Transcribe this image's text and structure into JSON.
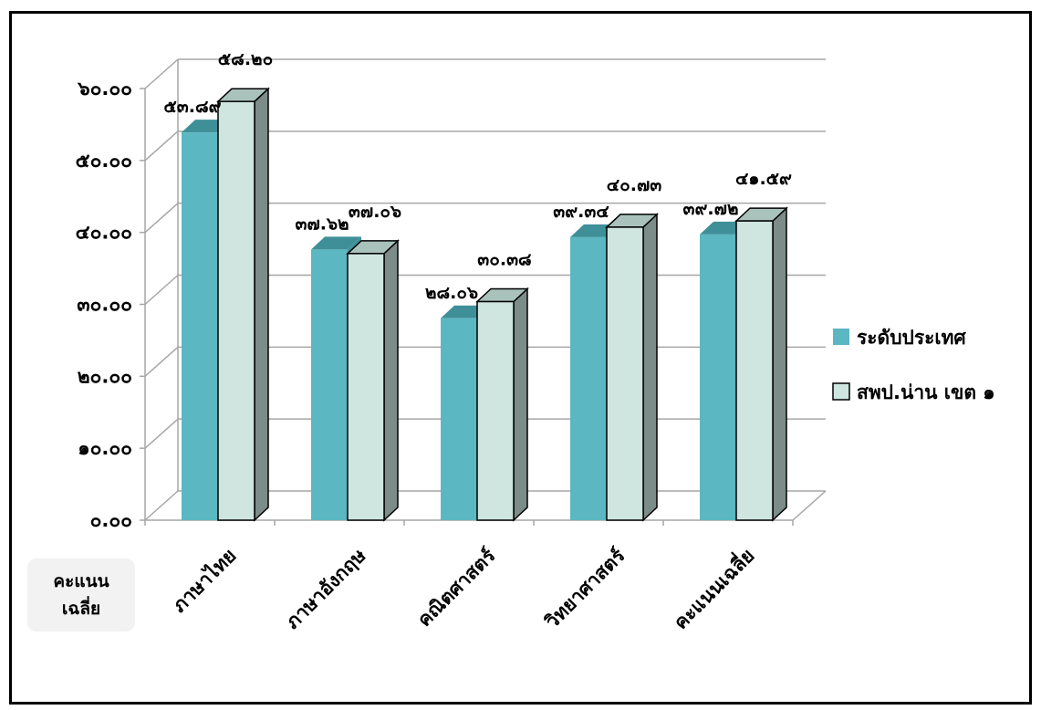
{
  "chart_data": {
    "type": "bar",
    "title": "",
    "xlabel": "",
    "ylabel": [
      "คะแนน",
      "เฉลี่ย"
    ],
    "categories": [
      "ภาษาไทย",
      "ภาษาอังกฤษ",
      "คณิตศาสตร์",
      "วิทยาศาสตร์",
      "คะแนนเฉลี่ย"
    ],
    "series": [
      {
        "name": "ระดับประเทศ",
        "color": "#5bb7c2",
        "values": [
          53.89,
          37.62,
          28.06,
          39.34,
          39.72
        ],
        "labels": [
          "๕๓.๘๙",
          "๓๗.๖๒",
          "๒๘.๐๖",
          "๓๙.๓๔",
          "๓๙.๗๒"
        ]
      },
      {
        "name": "สพป.น่าน เขต ๑",
        "color": "#cfe6e0",
        "values": [
          58.2,
          37.06,
          30.38,
          40.73,
          41.59
        ],
        "labels": [
          "๕๘.๒๐",
          "๓๗.๐๖",
          "๓๐.๓๘",
          "๔๐.๗๓",
          "๔๑.๕๙"
        ]
      }
    ],
    "ylim": [
      0,
      60
    ],
    "yticks": [
      0,
      10,
      20,
      30,
      40,
      50,
      60
    ],
    "ytick_labels": [
      "๐.๐๐",
      "๑๐.๐๐",
      "๒๐.๐๐",
      "๓๐.๐๐",
      "๔๐.๐๐",
      "๕๐.๐๐",
      "๖๐.๐๐"
    ],
    "grid": true,
    "legend_position": "right"
  }
}
